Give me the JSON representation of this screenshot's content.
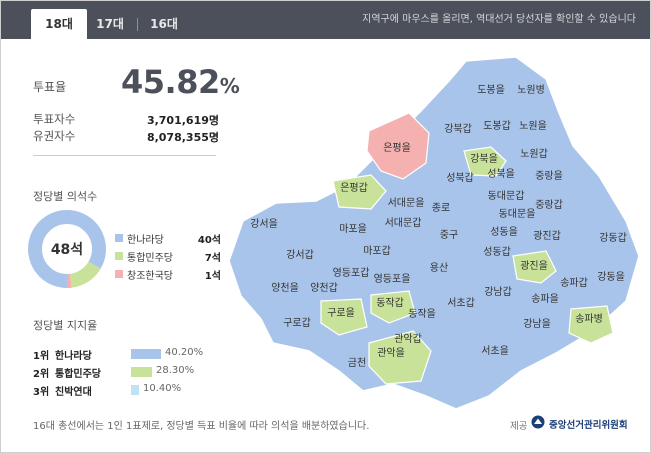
{
  "tabs": [
    {
      "label": "18대",
      "active": true
    },
    {
      "label": "17대",
      "active": false
    },
    {
      "label": "16대",
      "active": false
    }
  ],
  "header_note": "지역구에 마우스를 올리면, 역대선거 당선자를 확인할 수 있습니다",
  "turnout": {
    "label": "투표율",
    "value": "45.82",
    "unit": "%",
    "voters_label": "투표자수",
    "voters_value": "3,701,619명",
    "eligible_label": "유권자수",
    "eligible_value": "8,078,355명"
  },
  "seats": {
    "title": "정당별 의석수",
    "total": "48석",
    "parties": [
      {
        "name": "한나라당",
        "seats": "40석",
        "count": 40,
        "color": "#a9c4ea"
      },
      {
        "name": "통합민주당",
        "seats": "7석",
        "count": 7,
        "color": "#c8e29a"
      },
      {
        "name": "창조한국당",
        "seats": "1석",
        "count": 1,
        "color": "#f5b0b0"
      }
    ]
  },
  "support": {
    "title": "정당별 지지율",
    "items": [
      {
        "rank": "1위",
        "name": "한나라당",
        "pct": "40.20%",
        "value": 40.2,
        "color": "#a9c4ea"
      },
      {
        "rank": "2위",
        "name": "통합민주당",
        "pct": "28.30%",
        "value": 28.3,
        "color": "#c8e29a"
      },
      {
        "rank": "3위",
        "name": "친박연대",
        "pct": "10.40%",
        "value": 10.4,
        "color": "#bfe3f5"
      }
    ]
  },
  "footnote": "16대 총선에서는 1인 1표제로, 정당별 득표 비율에 따라 의석을 배분하였습니다.",
  "source_label": "제공",
  "source_name": "중앙선거관리위원회",
  "map": {
    "colors": {
      "gnp": "#a9c4ea",
      "udp": "#c8e29a",
      "ckp": "#f5b0b0",
      "border": "#ffffff"
    },
    "districts": [
      {
        "name": "도봉을",
        "party": "gnp"
      },
      {
        "name": "노원병",
        "party": "gnp"
      },
      {
        "name": "강북갑",
        "party": "gnp"
      },
      {
        "name": "도봉갑",
        "party": "gnp"
      },
      {
        "name": "노원을",
        "party": "gnp"
      },
      {
        "name": "은평을",
        "party": "ckp"
      },
      {
        "name": "강북을",
        "party": "udp"
      },
      {
        "name": "노원갑",
        "party": "gnp"
      },
      {
        "name": "성북갑",
        "party": "gnp"
      },
      {
        "name": "성북을",
        "party": "gnp"
      },
      {
        "name": "중랑을",
        "party": "gnp"
      },
      {
        "name": "은평갑",
        "party": "udp"
      },
      {
        "name": "동대문갑",
        "party": "gnp"
      },
      {
        "name": "서대문을",
        "party": "gnp"
      },
      {
        "name": "중랑갑",
        "party": "gnp"
      },
      {
        "name": "종로",
        "party": "gnp"
      },
      {
        "name": "동대문을",
        "party": "gnp"
      },
      {
        "name": "강서을",
        "party": "gnp"
      },
      {
        "name": "마포을",
        "party": "gnp"
      },
      {
        "name": "서대문갑",
        "party": "gnp"
      },
      {
        "name": "광진갑",
        "party": "gnp"
      },
      {
        "name": "중구",
        "party": "gnp"
      },
      {
        "name": "성동을",
        "party": "gnp"
      },
      {
        "name": "강동갑",
        "party": "gnp"
      },
      {
        "name": "마포갑",
        "party": "gnp"
      },
      {
        "name": "성동갑",
        "party": "gnp"
      },
      {
        "name": "강서갑",
        "party": "gnp"
      },
      {
        "name": "광진을",
        "party": "udp"
      },
      {
        "name": "영등포갑",
        "party": "gnp"
      },
      {
        "name": "용산",
        "party": "gnp"
      },
      {
        "name": "송파갑",
        "party": "gnp"
      },
      {
        "name": "강동을",
        "party": "gnp"
      },
      {
        "name": "양천을",
        "party": "gnp"
      },
      {
        "name": "양천갑",
        "party": "gnp"
      },
      {
        "name": "영등포을",
        "party": "gnp"
      },
      {
        "name": "강남갑",
        "party": "gnp"
      },
      {
        "name": "동작갑",
        "party": "udp"
      },
      {
        "name": "송파을",
        "party": "gnp"
      },
      {
        "name": "서초갑",
        "party": "gnp"
      },
      {
        "name": "구로을",
        "party": "udp"
      },
      {
        "name": "동작을",
        "party": "gnp"
      },
      {
        "name": "송파병",
        "party": "udp"
      },
      {
        "name": "구로갑",
        "party": "gnp"
      },
      {
        "name": "강남을",
        "party": "gnp"
      },
      {
        "name": "관악갑",
        "party": "gnp"
      },
      {
        "name": "관악을",
        "party": "udp"
      },
      {
        "name": "서초을",
        "party": "gnp"
      },
      {
        "name": "금천",
        "party": "gnp"
      }
    ]
  }
}
